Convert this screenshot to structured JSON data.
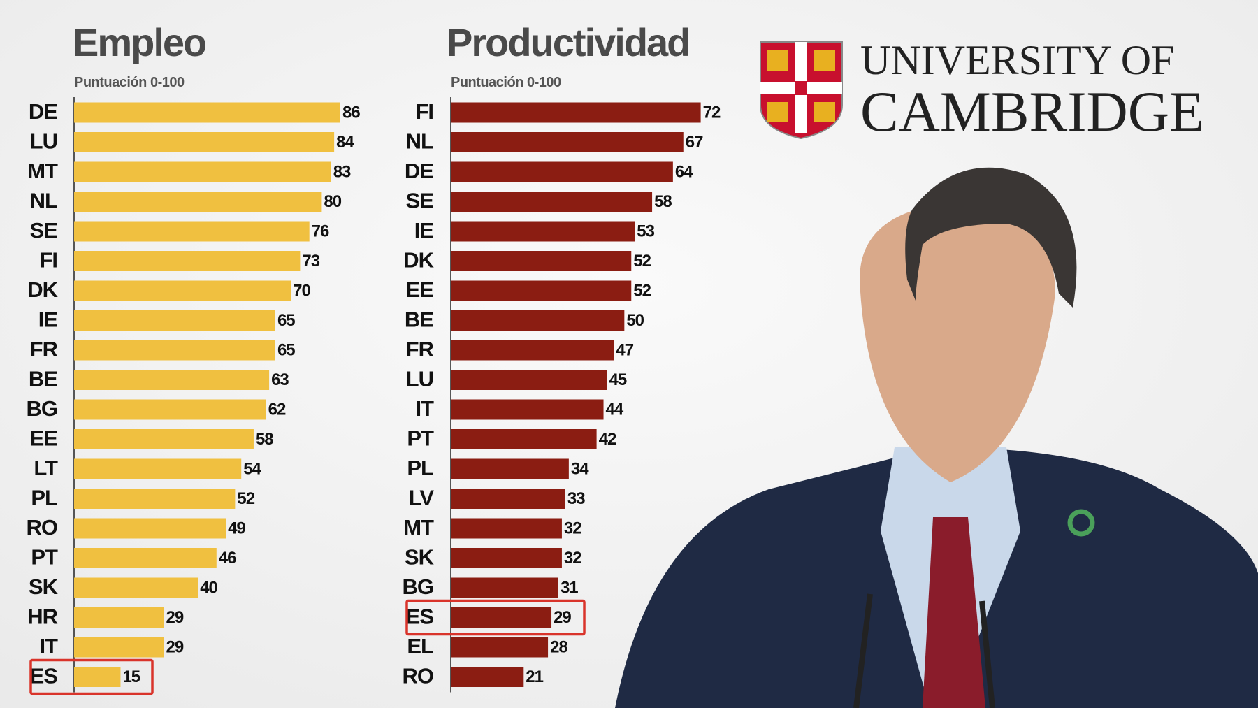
{
  "chart_data": [
    {
      "type": "bar",
      "orientation": "horizontal",
      "title": "Empleo",
      "subtitle": "Puntuación 0-100",
      "categories": [
        "DE",
        "LU",
        "MT",
        "NL",
        "SE",
        "FI",
        "DK",
        "IE",
        "FR",
        "BE",
        "BG",
        "EE",
        "LT",
        "PL",
        "RO",
        "PT",
        "SK",
        "HR",
        "IT",
        "ES"
      ],
      "values": [
        86,
        84,
        83,
        80,
        76,
        73,
        70,
        65,
        65,
        63,
        62,
        58,
        54,
        52,
        49,
        46,
        40,
        29,
        29,
        15
      ],
      "color": "#f0c040",
      "xlim": [
        0,
        100
      ],
      "highlight": "ES",
      "highlight_color": "#d9342b"
    },
    {
      "type": "bar",
      "orientation": "horizontal",
      "title": "Productividad",
      "subtitle": "Puntuación 0-100",
      "categories": [
        "FI",
        "NL",
        "DE",
        "SE",
        "IE",
        "DK",
        "EE",
        "BE",
        "FR",
        "LU",
        "IT",
        "PT",
        "PL",
        "LV",
        "MT",
        "SK",
        "BG",
        "ES",
        "EL",
        "RO"
      ],
      "values": [
        72,
        67,
        64,
        58,
        53,
        52,
        52,
        50,
        47,
        45,
        44,
        42,
        34,
        33,
        32,
        32,
        31,
        29,
        28,
        21
      ],
      "color": "#8b1d12",
      "xlim": [
        0,
        90
      ],
      "highlight": "ES",
      "highlight_color": "#d9342b"
    }
  ],
  "logo": {
    "line1": "UNIVERSITY OF",
    "line2": "CAMBRIDGE"
  }
}
